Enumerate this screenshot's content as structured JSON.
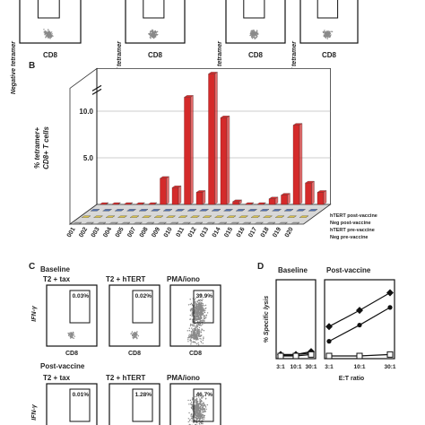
{
  "panel_a": {
    "plots": [
      {
        "y_label": "Negative tetramer",
        "x_label": "CD8"
      },
      {
        "y_label": "hTERT tetramer",
        "x_label": "CD8"
      },
      {
        "y_label": "Negative tetramer",
        "x_label": "CD8"
      },
      {
        "y_label": "hTERT tetramer",
        "x_label": "CD8"
      }
    ]
  },
  "chart_data": [
    {
      "type": "bar3d",
      "panel": "B",
      "ylabel": [
        "% tetramer+",
        "CD8+ T cells"
      ],
      "categories": [
        "001",
        "002",
        "003",
        "004",
        "005",
        "007",
        "008",
        "009",
        "010",
        "011",
        "012",
        "013",
        "014",
        "015",
        "016",
        "017",
        "018",
        "019",
        "020"
      ],
      "series": [
        {
          "name": "hTERT post-vaccine",
          "color": "#d42a2a",
          "values": [
            0,
            0,
            0,
            0,
            0,
            2.8,
            1.8,
            11.5,
            1.3,
            14,
            9.3,
            0.3,
            0,
            0,
            0.6,
            1,
            8.5,
            2.3,
            1.3
          ]
        },
        {
          "name": "Neg post-vaccine",
          "color": "#4f6fb0",
          "values": [
            0,
            0,
            0,
            0,
            0,
            0,
            0,
            0,
            0,
            0,
            0,
            0,
            0,
            0,
            0,
            0,
            0,
            0,
            0
          ]
        },
        {
          "name": "hTERT pre-vaccine",
          "color": "#d9c04a",
          "values": [
            0,
            0,
            0,
            0,
            0,
            0,
            0,
            0,
            0,
            0,
            0,
            0,
            0,
            0,
            0,
            0,
            0,
            0,
            0
          ]
        },
        {
          "name": "Neg pre-vaccine",
          "color": "#9a9a9a",
          "values": [
            0,
            0,
            0,
            0,
            0,
            0,
            0,
            0,
            0,
            0,
            0,
            0,
            0,
            0,
            0,
            0,
            0,
            0,
            0
          ]
        }
      ],
      "ylim": [
        0,
        14
      ],
      "yticks": [
        {
          "value": 5,
          "label": "5.0"
        },
        {
          "value": 10,
          "label": "10.0"
        }
      ],
      "grid": true,
      "axis_break": true
    },
    {
      "type": "line",
      "panel": "D",
      "title": "Baseline",
      "ylabel": "% Specific lysis",
      "xlabel": "E:T ratio",
      "categories": [
        "3:1",
        "10:1",
        "30:1"
      ],
      "ylim": [
        0,
        50
      ],
      "series": [
        {
          "marker": "diamond",
          "color": "#111",
          "values": [
            1,
            1,
            3
          ]
        },
        {
          "marker": "circle",
          "color": "#111",
          "values": [
            0,
            1,
            2
          ]
        },
        {
          "marker": "square",
          "color": "#111",
          "values": [
            0,
            0,
            1
          ]
        }
      ]
    },
    {
      "type": "line",
      "title": "Post-vaccine",
      "categories": [
        "3:1",
        "10:1",
        "30:1"
      ],
      "ylim": [
        0,
        50
      ],
      "series": [
        {
          "marker": "diamond",
          "color": "#111",
          "values": [
            20,
            31,
            43
          ]
        },
        {
          "marker": "circle",
          "color": "#111",
          "values": [
            10,
            21,
            33
          ]
        },
        {
          "marker": "square",
          "color": "#111",
          "values": [
            0,
            0,
            1
          ]
        }
      ]
    }
  ],
  "panel_c": {
    "letter": "C",
    "y_label": "IFN-γ",
    "x_label": "CD8",
    "groups": [
      {
        "title": "Baseline",
        "plots": [
          {
            "title": "T2 + tax",
            "percent": "0.03%"
          },
          {
            "title": "T2 + hTERT",
            "percent": "0.02%"
          },
          {
            "title": "PMA/iono",
            "percent": "39.9%"
          }
        ]
      },
      {
        "title": "Post-vaccine",
        "plots": [
          {
            "title": "T2 + tax",
            "percent": "0.01%"
          },
          {
            "title": "T2 + hTERT",
            "percent": "1.28%"
          },
          {
            "title": "PMA/iono",
            "percent": "46.7%"
          }
        ]
      }
    ]
  }
}
